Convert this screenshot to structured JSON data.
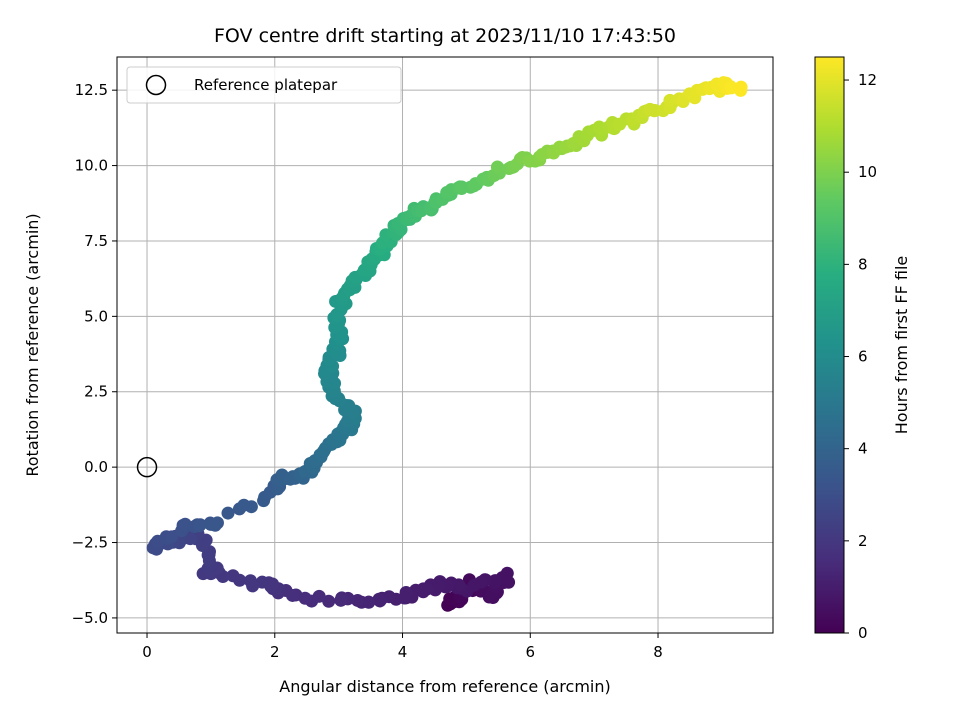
{
  "chart_data": {
    "type": "scatter",
    "title": "FOV centre drift starting at 2023/11/10 17:43:50",
    "xlabel": "Angular distance from reference (arcmin)",
    "ylabel": "Rotation from reference (arcmin)",
    "xlim": [
      -0.47,
      9.8
    ],
    "ylim": [
      -5.5,
      13.6
    ],
    "xticks": [
      0,
      2,
      4,
      6,
      8
    ],
    "yticks": [
      -5.0,
      -2.5,
      0.0,
      2.5,
      5.0,
      7.5,
      10.0,
      12.5
    ],
    "xtick_labels": [
      "0",
      "2",
      "4",
      "6",
      "8"
    ],
    "ytick_labels": [
      "−5.0",
      "−2.5",
      "0.0",
      "2.5",
      "5.0",
      "7.5",
      "10.0",
      "12.5"
    ],
    "grid": true,
    "legend": {
      "position": "top-left",
      "entries": [
        "Reference platepar"
      ]
    },
    "reference_point": {
      "x": 0,
      "y": 0,
      "label": "Reference platepar"
    },
    "colorbar": {
      "label": "Hours from first FF file",
      "range": [
        0,
        12.5
      ],
      "ticks": [
        0,
        2,
        4,
        6,
        8,
        10,
        12
      ],
      "tick_labels": [
        "0",
        "2",
        "4",
        "6",
        "8",
        "10",
        "12"
      ],
      "colormap": "viridis"
    },
    "waypoints": [
      {
        "t": 0.0,
        "x": 4.75,
        "y": -4.55
      },
      {
        "t": 0.15,
        "x": 4.9,
        "y": -4.3
      },
      {
        "t": 0.3,
        "x": 5.1,
        "y": -3.85
      },
      {
        "t": 0.45,
        "x": 5.4,
        "y": -4.3
      },
      {
        "t": 0.6,
        "x": 5.65,
        "y": -3.6
      },
      {
        "t": 0.75,
        "x": 5.0,
        "y": -4.0
      },
      {
        "t": 0.9,
        "x": 4.6,
        "y": -3.9
      },
      {
        "t": 1.0,
        "x": 4.2,
        "y": -4.2
      },
      {
        "t": 1.2,
        "x": 3.6,
        "y": -4.35
      },
      {
        "t": 1.45,
        "x": 3.0,
        "y": -4.45
      },
      {
        "t": 1.7,
        "x": 2.05,
        "y": -4.15
      },
      {
        "t": 1.9,
        "x": 1.9,
        "y": -3.95
      },
      {
        "t": 2.05,
        "x": 0.95,
        "y": -3.5
      },
      {
        "t": 2.15,
        "x": 1.05,
        "y": -3.3
      },
      {
        "t": 2.35,
        "x": 0.8,
        "y": -2.15
      },
      {
        "t": 2.6,
        "x": 0.5,
        "y": -2.35
      },
      {
        "t": 2.85,
        "x": 0.1,
        "y": -2.7
      },
      {
        "t": 3.1,
        "x": 0.6,
        "y": -1.95
      },
      {
        "t": 3.35,
        "x": 1.05,
        "y": -1.9
      },
      {
        "t": 3.55,
        "x": 2.0,
        "y": -0.8
      },
      {
        "t": 3.8,
        "x": 2.1,
        "y": -0.3
      },
      {
        "t": 4.05,
        "x": 2.5,
        "y": -0.25
      },
      {
        "t": 4.3,
        "x": 2.6,
        "y": 0.05
      },
      {
        "t": 4.5,
        "x": 2.8,
        "y": 0.5
      },
      {
        "t": 4.75,
        "x": 2.95,
        "y": 0.9
      },
      {
        "t": 5.0,
        "x": 3.15,
        "y": 1.3
      },
      {
        "t": 5.2,
        "x": 3.25,
        "y": 1.65
      },
      {
        "t": 5.4,
        "x": 3.0,
        "y": 2.2
      },
      {
        "t": 5.6,
        "x": 2.9,
        "y": 2.65
      },
      {
        "t": 5.8,
        "x": 2.85,
        "y": 3.25
      },
      {
        "t": 6.0,
        "x": 2.95,
        "y": 3.75
      },
      {
        "t": 6.25,
        "x": 3.0,
        "y": 4.3
      },
      {
        "t": 6.5,
        "x": 2.95,
        "y": 4.9
      },
      {
        "t": 6.75,
        "x": 3.05,
        "y": 5.6
      },
      {
        "t": 7.0,
        "x": 3.25,
        "y": 6.1
      },
      {
        "t": 7.3,
        "x": 3.45,
        "y": 6.55
      },
      {
        "t": 7.6,
        "x": 3.6,
        "y": 7.05
      },
      {
        "t": 7.9,
        "x": 3.75,
        "y": 7.5
      },
      {
        "t": 8.2,
        "x": 3.95,
        "y": 8.0
      },
      {
        "t": 8.5,
        "x": 4.15,
        "y": 8.4
      },
      {
        "t": 8.8,
        "x": 4.45,
        "y": 8.7
      },
      {
        "t": 9.1,
        "x": 4.8,
        "y": 9.1
      },
      {
        "t": 9.4,
        "x": 5.2,
        "y": 9.45
      },
      {
        "t": 9.7,
        "x": 5.5,
        "y": 9.85
      },
      {
        "t": 10.0,
        "x": 5.9,
        "y": 10.15
      },
      {
        "t": 10.3,
        "x": 6.3,
        "y": 10.45
      },
      {
        "t": 10.6,
        "x": 6.7,
        "y": 10.75
      },
      {
        "t": 10.9,
        "x": 7.1,
        "y": 11.15
      },
      {
        "t": 11.2,
        "x": 7.5,
        "y": 11.45
      },
      {
        "t": 11.5,
        "x": 7.9,
        "y": 11.8
      },
      {
        "t": 11.8,
        "x": 8.3,
        "y": 12.1
      },
      {
        "t": 12.1,
        "x": 8.7,
        "y": 12.45
      },
      {
        "t": 12.3,
        "x": 9.0,
        "y": 12.65
      },
      {
        "t": 12.5,
        "x": 9.3,
        "y": 12.6
      }
    ]
  }
}
